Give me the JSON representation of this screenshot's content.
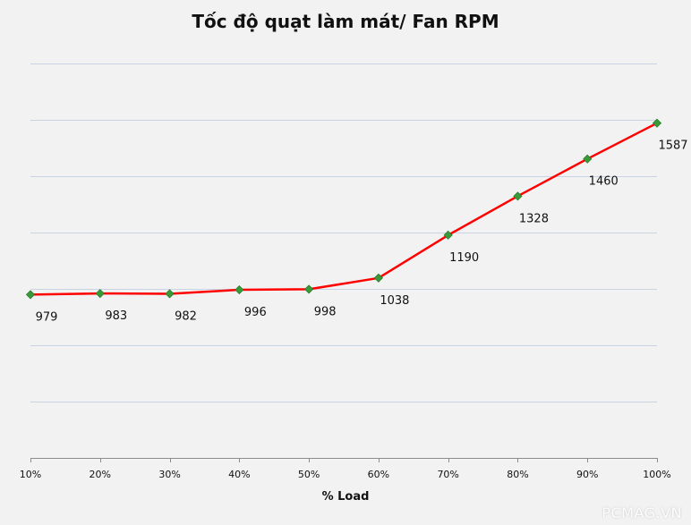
{
  "chart_data": {
    "type": "line",
    "title": "Tốc độ quạt làm mát/ Fan RPM",
    "xlabel": "% Load",
    "ylabel": "",
    "categories": [
      "10%",
      "20%",
      "30%",
      "40%",
      "50%",
      "60%",
      "70%",
      "80%",
      "90%",
      "100%"
    ],
    "series": [
      {
        "values": [
          979,
          983,
          982,
          996,
          998,
          1038,
          1190,
          1328,
          1460,
          1587
        ]
      }
    ],
    "ylim": [
      400,
      1800
    ],
    "ytick_step": 200,
    "y_tick_labels_visible": false,
    "grid": true,
    "legend": "none",
    "colors": {
      "line": "#ff0000",
      "marker": "#3a9a3a",
      "grid": "#c8d4e4",
      "axis": "#8c8c8c",
      "background": "#f2f2f2"
    }
  },
  "watermark": "PCMAG.VN"
}
